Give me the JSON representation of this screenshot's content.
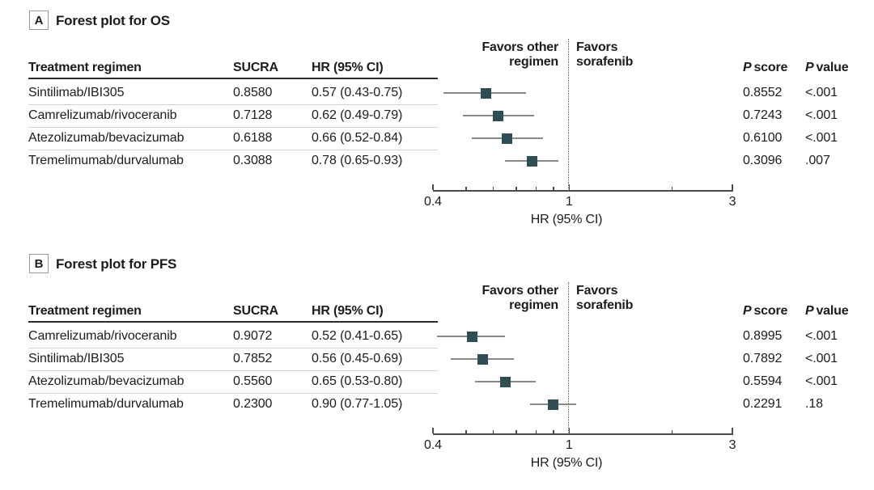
{
  "columns": {
    "treatment": "Treatment regimen",
    "sucra": "SUCRA",
    "hr_ci": "HR (95% CI)",
    "p_score": {
      "italic": "P",
      "rest": "score"
    },
    "p_value": {
      "italic": "P",
      "rest": "value"
    }
  },
  "plot_labels": {
    "favors_other_line1": "Favors other",
    "favors_other_line2": "regimen",
    "favors_sorafenib_line1": "Favors",
    "favors_sorafenib_line2": "sorafenib"
  },
  "colors": {
    "marker": "#2e4d55",
    "ci_line": "#8a8a8a",
    "reference_line": "#666666",
    "separator": "#d2d2d2",
    "header_rule": "#2b2b2b",
    "text": "#1c1c1c"
  },
  "chart_data": [
    {
      "type": "forest",
      "panel_label": "A",
      "title": "Forest plot for OS",
      "xlabel": "HR (95% CI)",
      "x_scale": "log",
      "xlim": [
        0.4,
        3
      ],
      "x_major_ticks": [
        0.4,
        1,
        3
      ],
      "x_major_tick_labels": [
        "0.4",
        "1",
        "3"
      ],
      "x_minor_ticks": [
        0.5,
        0.6,
        0.7,
        0.8,
        0.9,
        2
      ],
      "reference_line_x": 1,
      "left_annotation": "Favors other regimen",
      "right_annotation": "Favors sorafenib",
      "rows": [
        {
          "treatment": "Sintilimab/IBI305",
          "sucra": "0.8580",
          "hr": 0.57,
          "ci_low": 0.43,
          "ci_high": 0.75,
          "hr_ci": "0.57 (0.43-0.75)",
          "p_score": "0.8552",
          "p_value": "<.001"
        },
        {
          "treatment": "Camrelizumab/rivoceranib",
          "sucra": "0.7128",
          "hr": 0.62,
          "ci_low": 0.49,
          "ci_high": 0.79,
          "hr_ci": "0.62 (0.49-0.79)",
          "p_score": "0.7243",
          "p_value": "<.001"
        },
        {
          "treatment": "Atezolizumab/bevacizumab",
          "sucra": "0.6188",
          "hr": 0.66,
          "ci_low": 0.52,
          "ci_high": 0.84,
          "hr_ci": "0.66 (0.52-0.84)",
          "p_score": "0.6100",
          "p_value": "<.001"
        },
        {
          "treatment": "Tremelimumab/durvalumab",
          "sucra": "0.3088",
          "hr": 0.78,
          "ci_low": 0.65,
          "ci_high": 0.93,
          "hr_ci": "0.78 (0.65-0.93)",
          "p_score": "0.3096",
          "p_value": ".007"
        }
      ]
    },
    {
      "type": "forest",
      "panel_label": "B",
      "title": "Forest plot for PFS",
      "xlabel": "HR (95% CI)",
      "x_scale": "log",
      "xlim": [
        0.4,
        3
      ],
      "x_major_ticks": [
        0.4,
        1,
        3
      ],
      "x_major_tick_labels": [
        "0.4",
        "1",
        "3"
      ],
      "x_minor_ticks": [
        0.5,
        0.6,
        0.7,
        0.8,
        0.9,
        2
      ],
      "reference_line_x": 1,
      "left_annotation": "Favors other regimen",
      "right_annotation": "Favors sorafenib",
      "rows": [
        {
          "treatment": "Camrelizumab/rivoceranib",
          "sucra": "0.9072",
          "hr": 0.52,
          "ci_low": 0.41,
          "ci_high": 0.65,
          "hr_ci": "0.52 (0.41-0.65)",
          "p_score": "0.8995",
          "p_value": "<.001"
        },
        {
          "treatment": "Sintilimab/IBI305",
          "sucra": "0.7852",
          "hr": 0.56,
          "ci_low": 0.45,
          "ci_high": 0.69,
          "hr_ci": "0.56 (0.45-0.69)",
          "p_score": "0.7892",
          "p_value": "<.001"
        },
        {
          "treatment": "Atezolizumab/bevacizumab",
          "sucra": "0.5560",
          "hr": 0.65,
          "ci_low": 0.53,
          "ci_high": 0.8,
          "hr_ci": "0.65 (0.53-0.80)",
          "p_score": "0.5594",
          "p_value": "<.001"
        },
        {
          "treatment": "Tremelimumab/durvalumab",
          "sucra": "0.2300",
          "hr": 0.9,
          "ci_low": 0.77,
          "ci_high": 1.05,
          "hr_ci": "0.90 (0.77-1.05)",
          "p_score": "0.2291",
          "p_value": ".18"
        }
      ]
    }
  ]
}
